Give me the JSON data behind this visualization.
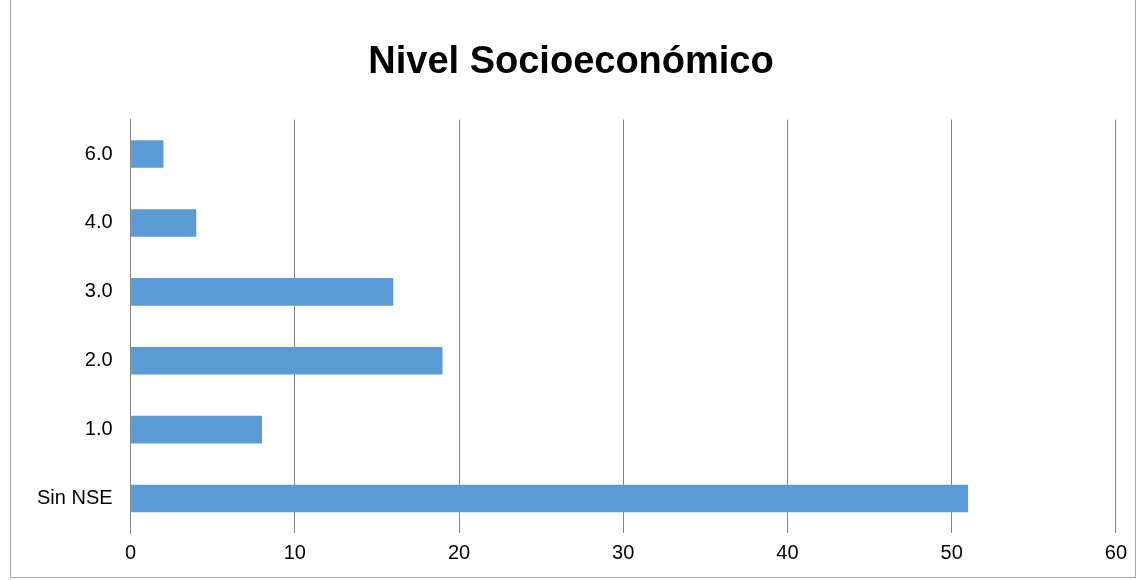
{
  "chart_data": {
    "type": "bar",
    "orientation": "horizontal",
    "title": "Nivel Socioeconómico",
    "categories": [
      "6.0",
      "4.0",
      "3.0",
      "2.0",
      "1.0",
      "Sin NSE"
    ],
    "values": [
      2,
      4,
      16,
      19,
      8,
      51
    ],
    "color": "#5b9bd5",
    "xlim": [
      0,
      60
    ],
    "xticks": [
      0,
      10,
      20,
      30,
      40,
      50,
      60
    ],
    "grid": "x",
    "legend": false
  }
}
